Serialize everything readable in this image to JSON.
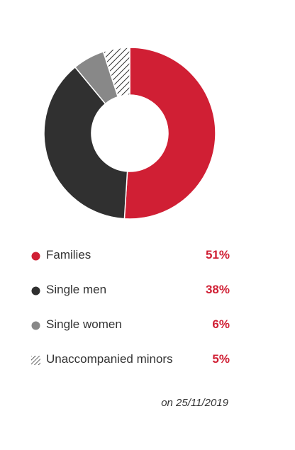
{
  "chart_data": {
    "type": "pie",
    "variant": "donut",
    "categories": [
      "Families",
      "Single men",
      "Single women",
      "Unaccompanied minors"
    ],
    "values": [
      51,
      38,
      6,
      5
    ],
    "value_labels": [
      "51%",
      "38%",
      "6%",
      "5%"
    ],
    "colors": [
      "#d01f34",
      "#303030",
      "#888888",
      "hatched"
    ],
    "value_color": "#d01f34",
    "legend_placement": "bottom",
    "footnote": "on 25/11/2019"
  }
}
